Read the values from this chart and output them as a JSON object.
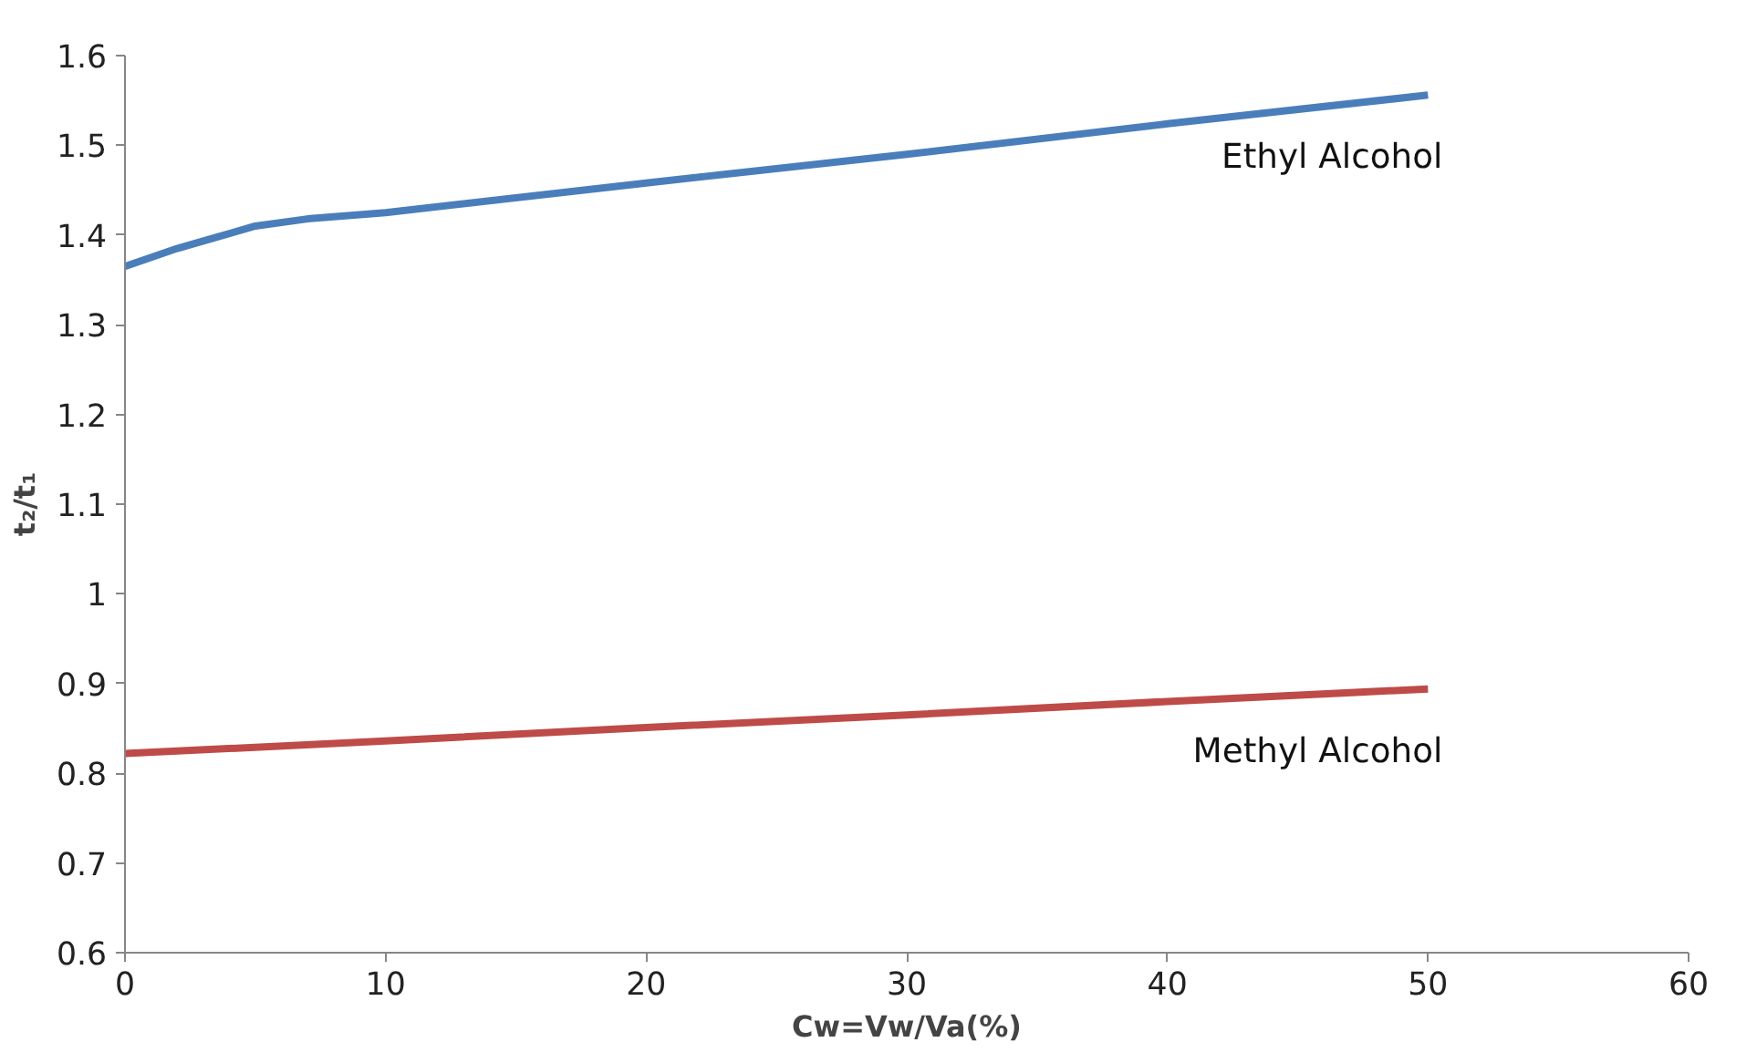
{
  "chart_data": {
    "type": "line",
    "xlabel": "Cw=Vw/Va(%)",
    "ylabel": "t₂/t₁",
    "xlim": [
      0,
      60
    ],
    "xticks": [
      0,
      10,
      20,
      30,
      40,
      50,
      60
    ],
    "ylim": [
      0.6,
      1.6
    ],
    "yticks": [
      0.6,
      0.7,
      0.8,
      0.9,
      1,
      1.1,
      1.2,
      1.3,
      1.4,
      1.5,
      1.6
    ],
    "grid": false,
    "legend": false,
    "marker": "none",
    "line_style": "solid",
    "series": [
      {
        "name": "Ethyl Alcohol",
        "color": "#4a7ebb",
        "x": [
          0,
          2,
          5,
          7,
          10,
          20,
          30,
          40,
          50
        ],
        "values": [
          1.365,
          1.385,
          1.41,
          1.418,
          1.425,
          1.458,
          1.49,
          1.524,
          1.556
        ]
      },
      {
        "name": "Methyl Alcohol",
        "color": "#be4b48",
        "x": [
          0,
          10,
          20,
          30,
          40,
          50
        ],
        "values": [
          0.822,
          0.836,
          0.851,
          0.865,
          0.88,
          0.894
        ]
      }
    ]
  }
}
